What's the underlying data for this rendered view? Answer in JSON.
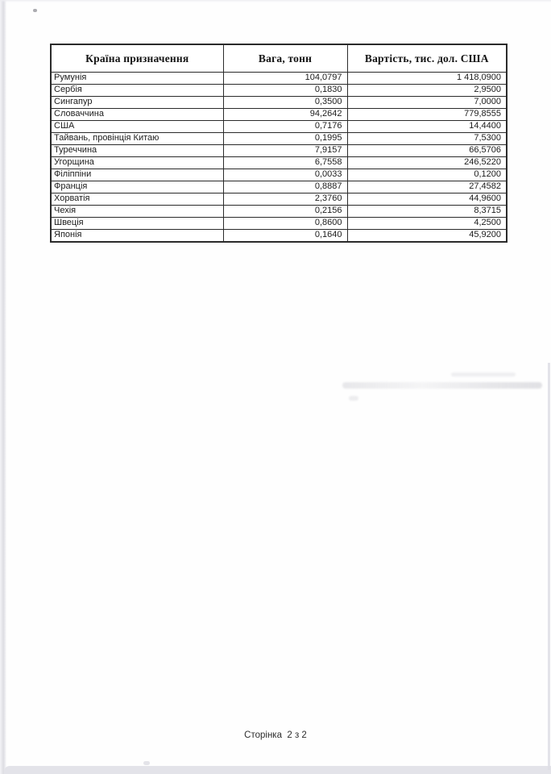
{
  "page": {
    "footer": "Сторінка  2 з 2"
  },
  "table": {
    "headers": [
      "Країна призначення",
      "Вага, тонн",
      "Вартість, тис. дол. США"
    ],
    "rows": [
      {
        "country": "Румунія",
        "weight": "104,0797",
        "value": "1 418,0900"
      },
      {
        "country": "Сербія",
        "weight": "0,1830",
        "value": "2,9500"
      },
      {
        "country": "Сингапур",
        "weight": "0,3500",
        "value": "7,0000"
      },
      {
        "country": "Словаччина",
        "weight": "94,2642",
        "value": "779,8555"
      },
      {
        "country": "США",
        "weight": "0,7176",
        "value": "14,4400"
      },
      {
        "country": "Тайвань, провінція Китаю",
        "weight": "0,1995",
        "value": "7,5300"
      },
      {
        "country": "Туреччина",
        "weight": "7,9157",
        "value": "66,5706"
      },
      {
        "country": "Угорщина",
        "weight": "6,7558",
        "value": "246,5220"
      },
      {
        "country": "Філіппіни",
        "weight": "0,0033",
        "value": "0,1200"
      },
      {
        "country": "Франція",
        "weight": "0,8887",
        "value": "27,4582"
      },
      {
        "country": "Хорватія",
        "weight": "2,3760",
        "value": "44,9600"
      },
      {
        "country": "Чехія",
        "weight": "0,2156",
        "value": "8,3715"
      },
      {
        "country": "Швеція",
        "weight": "0,8600",
        "value": "4,2500"
      },
      {
        "country": "Японія",
        "weight": "0,1640",
        "value": "45,9200"
      }
    ]
  }
}
